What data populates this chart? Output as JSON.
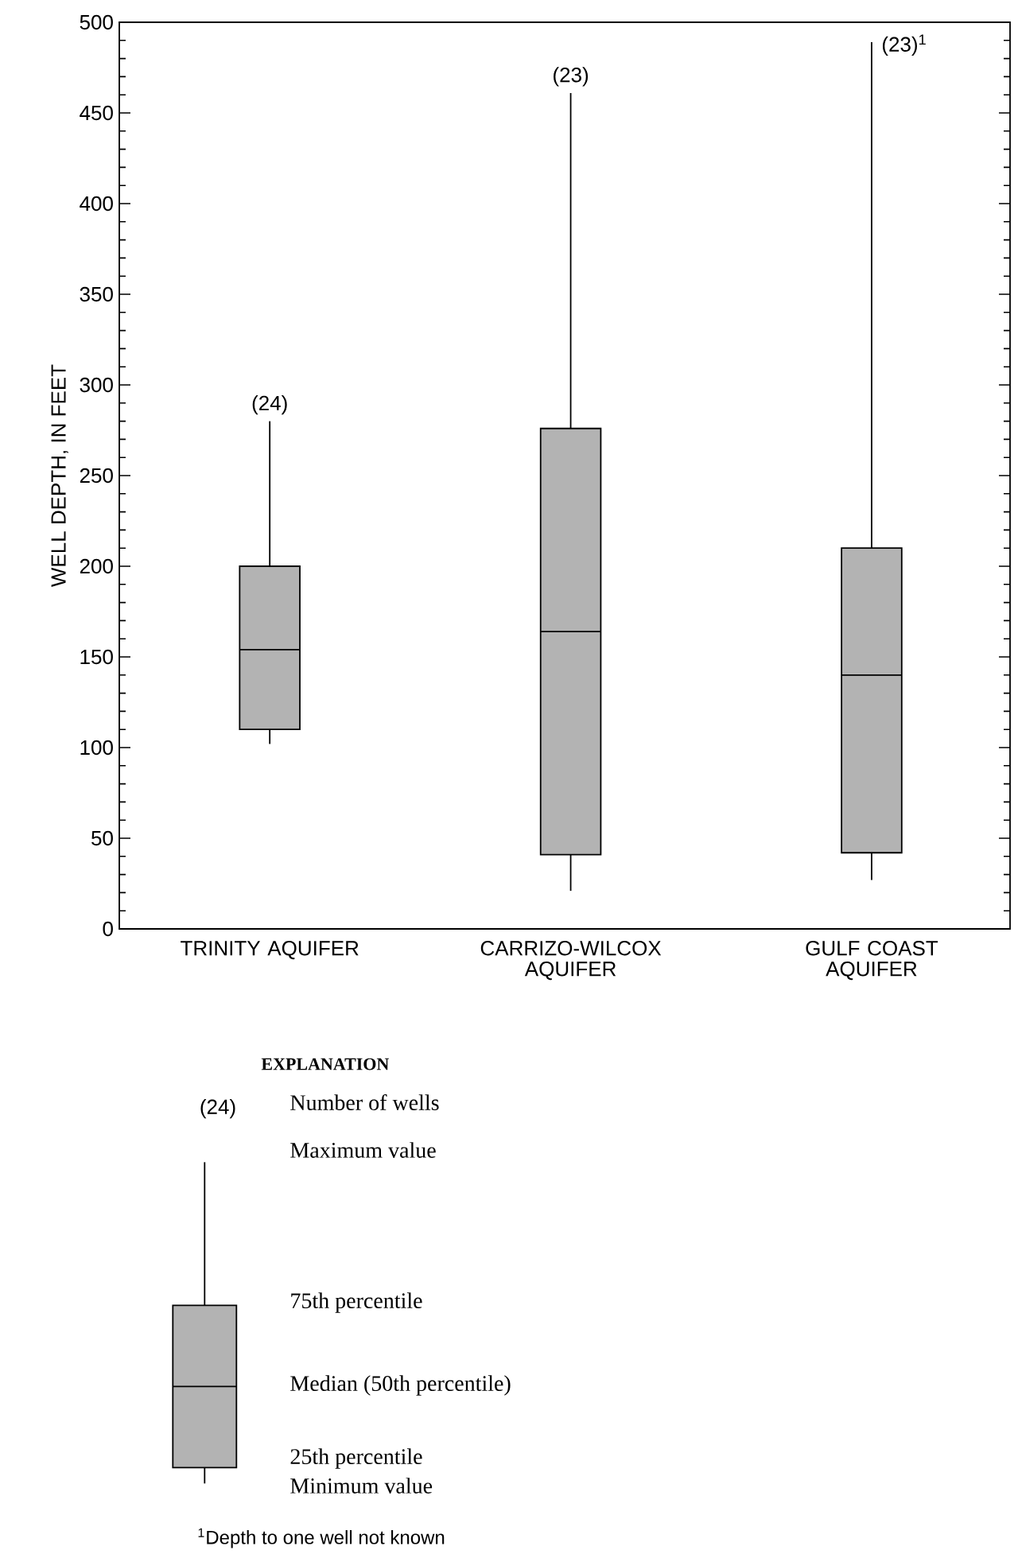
{
  "chart_data": {
    "type": "box",
    "ylabel": "WELL DEPTH, IN FEET",
    "categories": [
      "TRINITY AQUIFER",
      "CARRIZO-WILCOX AQUIFER",
      "GULF COAST AQUIFER"
    ],
    "series": [
      {
        "color": "#b3b3b3",
        "boxes": [
          {
            "low": 102,
            "q1": 110,
            "median": 154,
            "q3": 200,
            "high": 280
          },
          {
            "low": 21,
            "q1": 41,
            "median": 164,
            "q3": 276,
            "high": 461
          },
          {
            "low": 27,
            "q1": 42,
            "median": 140,
            "q3": 210,
            "high": 489
          }
        ]
      }
    ],
    "ylim": [
      0,
      500
    ],
    "yticks": [
      0,
      50,
      100,
      150,
      200,
      250,
      300,
      350,
      400,
      450,
      500
    ],
    "annotations": [
      "(24)",
      "(23)",
      "(23)$^{1}$",
      "EXPLANATION",
      "(24)",
      "Number of wells",
      "Maximum value",
      "75th percentile",
      "Median (50th percentile)",
      "25th percentile",
      "Minimum value",
      "$^{1}$Depth to one well not known"
    ]
  }
}
